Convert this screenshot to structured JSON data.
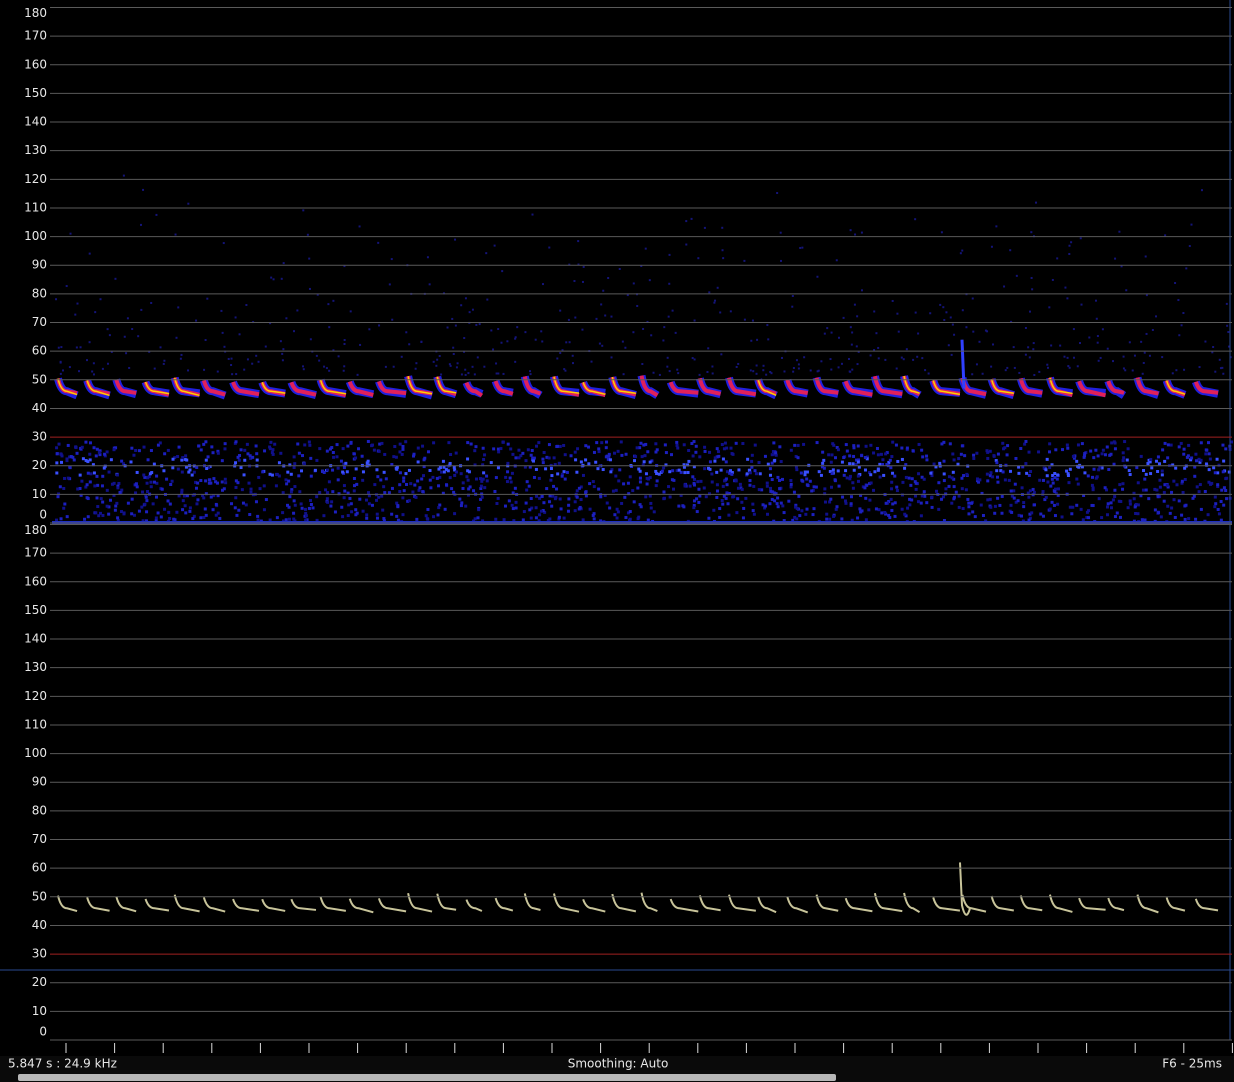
{
  "spectrogram": {
    "yticks": [
      0,
      10,
      20,
      30,
      40,
      50,
      60,
      70,
      80,
      90,
      100,
      110,
      120,
      130,
      140,
      150,
      160,
      170,
      180
    ]
  },
  "trace": {
    "yticks": [
      0,
      10,
      20,
      30,
      40,
      50,
      60,
      70,
      80,
      90,
      100,
      110,
      120,
      130,
      140,
      150,
      160,
      170,
      180
    ]
  },
  "status": {
    "left": "5.847 s : 24.9 kHz",
    "center": "Smoothing: Auto",
    "right": "F6 - 25ms"
  }
}
